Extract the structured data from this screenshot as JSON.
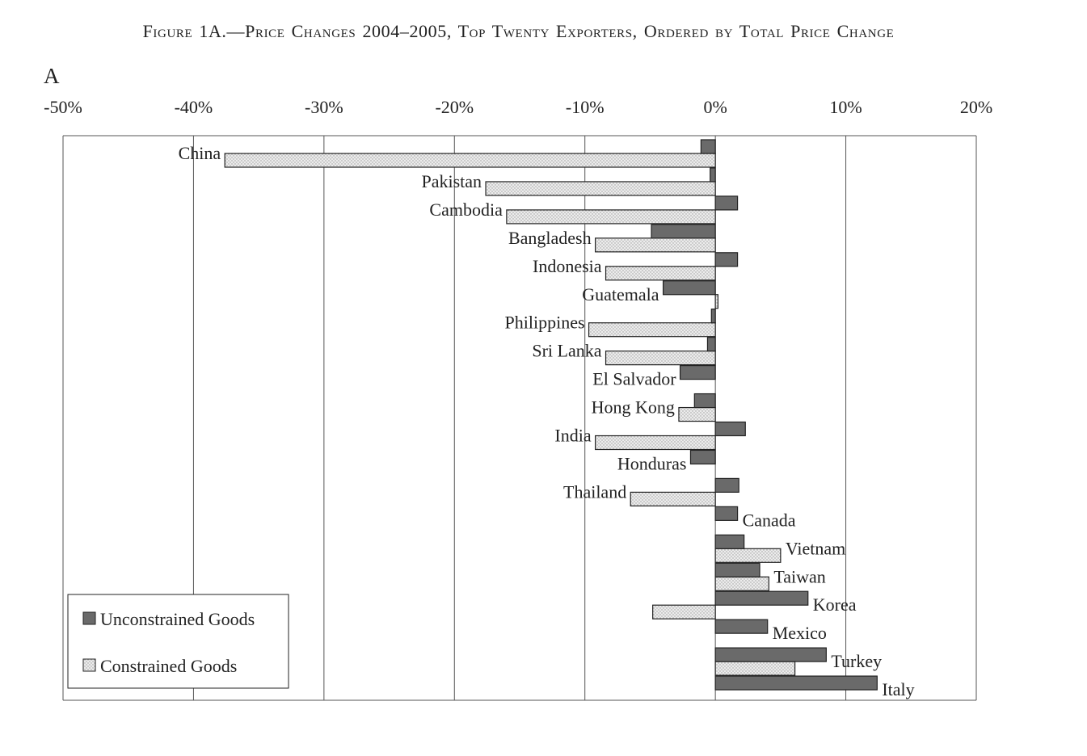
{
  "figure": {
    "title": "Figure 1A.—Price Changes 2004–2005, Top Twenty Exporters, Ordered by Total Price Change",
    "panel_label": "A"
  },
  "colors": {
    "unconstrained": "#6a6a6a",
    "constrained_fill": "#ececec",
    "constrained_dot": "#9a9a9a",
    "stroke": "#222222",
    "grid": "#555555"
  },
  "chart_data": {
    "type": "bar",
    "orientation": "horizontal",
    "title": "Figure 1A.—Price Changes 2004–2005, Top Twenty Exporters, Ordered by Total Price Change",
    "xlabel": "",
    "ylabel": "",
    "xlim": [
      -50,
      20
    ],
    "xticks": [
      -50,
      -40,
      -30,
      -20,
      -10,
      0,
      10,
      20
    ],
    "xtick_labels": [
      "-50%",
      "-40%",
      "-30%",
      "-20%",
      "-10%",
      "0%",
      "10%",
      "20%"
    ],
    "grid": "vertical",
    "legend": "bottom-left",
    "legend_entries": [
      "Unconstrained Goods",
      "Constrained Goods"
    ],
    "categories": [
      "China",
      "Pakistan",
      "Cambodia",
      "Bangladesh",
      "Indonesia",
      "Guatemala",
      "Philippines",
      "Sri Lanka",
      "El Salvador",
      "Hong Kong",
      "India",
      "Honduras",
      "Thailand",
      "Canada",
      "Vietnam",
      "Taiwan",
      "Korea",
      "Mexico",
      "Turkey",
      "Italy"
    ],
    "series": [
      {
        "name": "Unconstrained Goods",
        "values": [
          -1.1,
          -0.4,
          1.7,
          -4.9,
          1.7,
          -4.0,
          -0.3,
          -0.6,
          -2.7,
          -1.6,
          2.3,
          -1.9,
          1.8,
          1.7,
          2.2,
          3.4,
          7.1,
          4.0,
          8.5,
          12.4
        ]
      },
      {
        "name": "Constrained Goods",
        "values": [
          -37.6,
          -17.6,
          -16.0,
          -9.2,
          -8.4,
          0.2,
          -9.7,
          -8.4,
          null,
          -2.8,
          -9.2,
          null,
          -6.5,
          null,
          5.0,
          4.1,
          -4.8,
          null,
          6.1,
          null
        ]
      }
    ]
  }
}
